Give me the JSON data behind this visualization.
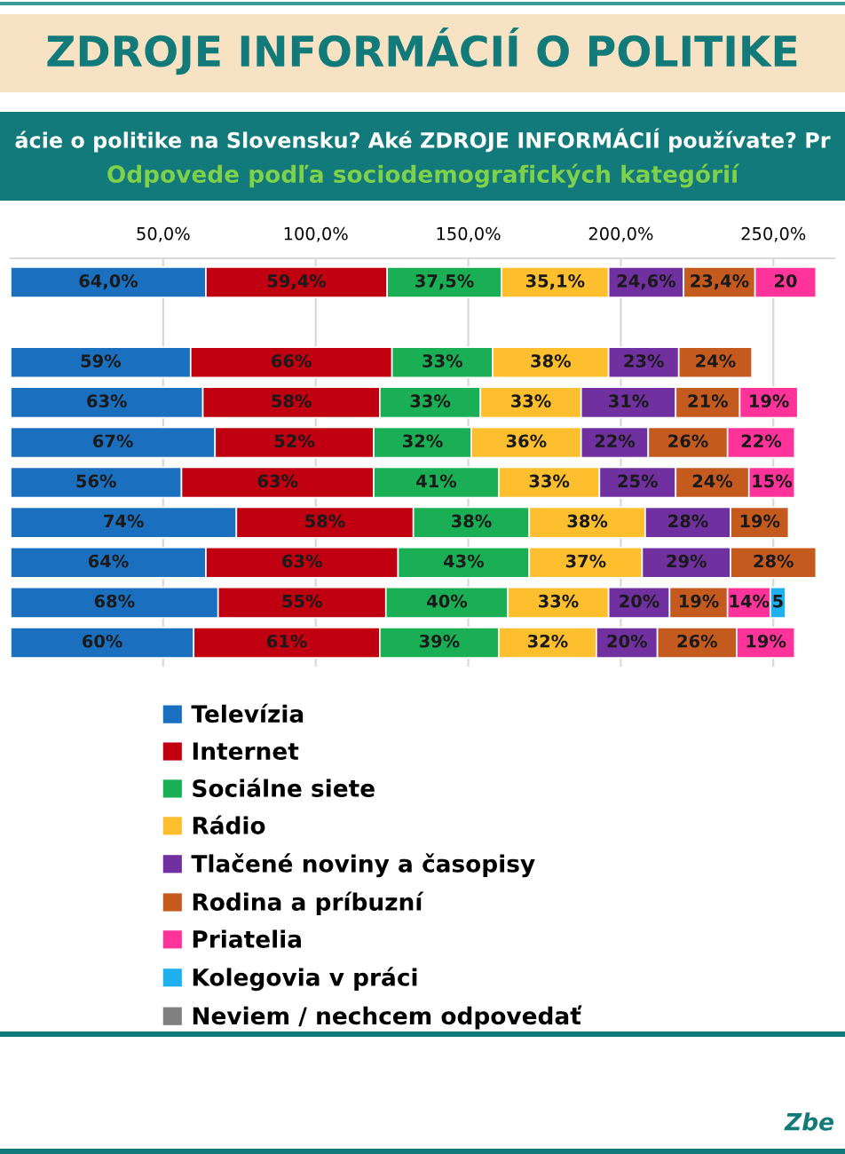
{
  "chart_data": {
    "type": "bar",
    "orientation": "horizontal",
    "stacked": true,
    "title": "ZDROJE INFORMÁCIÍ O POLITIKE",
    "subtitle": "ácie o politike na Slovensku? Aké ZDROJE INFORMÁCIÍ používate? Pr",
    "annotations": [
      "Odpovede podľa sociodemografických kategórií",
      "Zbe"
    ],
    "categories": [
      null,
      null,
      null,
      null,
      null,
      null,
      null,
      null,
      null,
      null
    ],
    "xlim": [
      0,
      270
    ],
    "xticks": [
      {
        "value": 50,
        "label": "50,0%"
      },
      {
        "value": 100,
        "label": "100,0%"
      },
      {
        "value": 150,
        "label": "150,0%"
      },
      {
        "value": 200,
        "label": "200,0%"
      },
      {
        "value": 250,
        "label": "250,0%"
      }
    ],
    "grid": "x",
    "legend": "bottom",
    "series": [
      {
        "name": "Televízia",
        "color": "#1a6fbe",
        "values": [
          64.0,
          null,
          59,
          63,
          67,
          56,
          74,
          64,
          68,
          60
        ],
        "value_labels": [
          "64,0%",
          null,
          "59%",
          "63%",
          "67%",
          "56%",
          "74%",
          "64%",
          "68%",
          "60%"
        ]
      },
      {
        "name": "Internet",
        "color": "#c00010",
        "values": [
          59.4,
          null,
          66,
          58,
          52,
          63,
          58,
          63,
          55,
          61
        ],
        "value_labels": [
          "59,4%",
          null,
          "66%",
          "58%",
          "52%",
          "63%",
          "58%",
          "63%",
          "55%",
          "61%"
        ]
      },
      {
        "name": "Sociálne siete",
        "color": "#1aaf54",
        "values": [
          37.5,
          null,
          33,
          33,
          32,
          41,
          38,
          43,
          40,
          39
        ],
        "value_labels": [
          "37,5%",
          null,
          "33%",
          "33%",
          "32%",
          "41%",
          "38%",
          "43%",
          "40%",
          "39%"
        ]
      },
      {
        "name": "Rádio",
        "color": "#fdbf2d",
        "values": [
          35.1,
          null,
          38,
          33,
          36,
          33,
          38,
          37,
          33,
          32
        ],
        "value_labels": [
          "35,1%",
          null,
          "38%",
          "33%",
          "36%",
          "33%",
          "38%",
          "37%",
          "33%",
          "32%"
        ]
      },
      {
        "name": "Tlačené noviny a časopisy",
        "color": "#7030a0",
        "values": [
          24.6,
          null,
          23,
          31,
          22,
          25,
          28,
          29,
          20,
          20
        ],
        "value_labels": [
          "24,6%",
          null,
          "23%",
          "31%",
          "22%",
          "25%",
          "28%",
          "29%",
          "20%",
          "20%"
        ]
      },
      {
        "name": "Rodina a príbuzní",
        "color": "#c55a1e",
        "values": [
          23.4,
          null,
          24,
          21,
          26,
          24,
          19,
          28,
          19,
          26
        ],
        "value_labels": [
          "23,4%",
          null,
          "24%",
          "21%",
          "26%",
          "24%",
          "19%",
          "28%",
          "19%",
          "26%"
        ]
      },
      {
        "name": "Priatelia",
        "color": "#ff3399",
        "values": [
          20,
          null,
          null,
          19,
          22,
          15,
          null,
          null,
          14,
          19
        ],
        "value_labels": [
          "20",
          null,
          null,
          "19%",
          "22%",
          "15%",
          null,
          null,
          "14%",
          "19%"
        ]
      },
      {
        "name": "Kolegovia v práci",
        "color": "#1fb0f0",
        "values": [
          null,
          null,
          null,
          null,
          null,
          null,
          null,
          null,
          5,
          null
        ],
        "value_labels": [
          null,
          null,
          null,
          null,
          null,
          null,
          null,
          null,
          "5",
          null
        ]
      },
      {
        "name": "Neviem / nechcem odpovedať",
        "color": "#808080",
        "values": [
          null,
          null,
          null,
          null,
          null,
          null,
          null,
          null,
          null,
          null
        ]
      }
    ]
  }
}
